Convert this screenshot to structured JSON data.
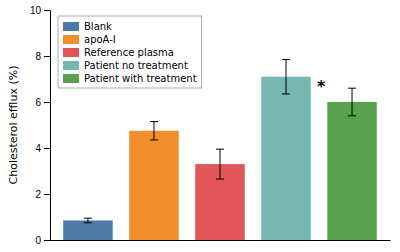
{
  "chart_data": {
    "type": "bar",
    "categories": [
      "Blank",
      "apoA-I",
      "Reference plasma",
      "Patient no treatment",
      "Patient with treatment"
    ],
    "values": [
      0.85,
      4.75,
      3.3,
      7.1,
      6.0
    ],
    "errors": [
      0.1,
      0.4,
      0.65,
      0.75,
      0.6
    ],
    "ylabel": "Cholesterol efflux (%)",
    "ylim": [
      0,
      10
    ],
    "yticks": [
      0,
      2,
      4,
      6,
      8,
      10
    ],
    "annotations": [
      {
        "text": "*",
        "category": "Patient with treatment"
      }
    ],
    "legend": "upper left",
    "grid": false,
    "tick_labels": "y"
  }
}
